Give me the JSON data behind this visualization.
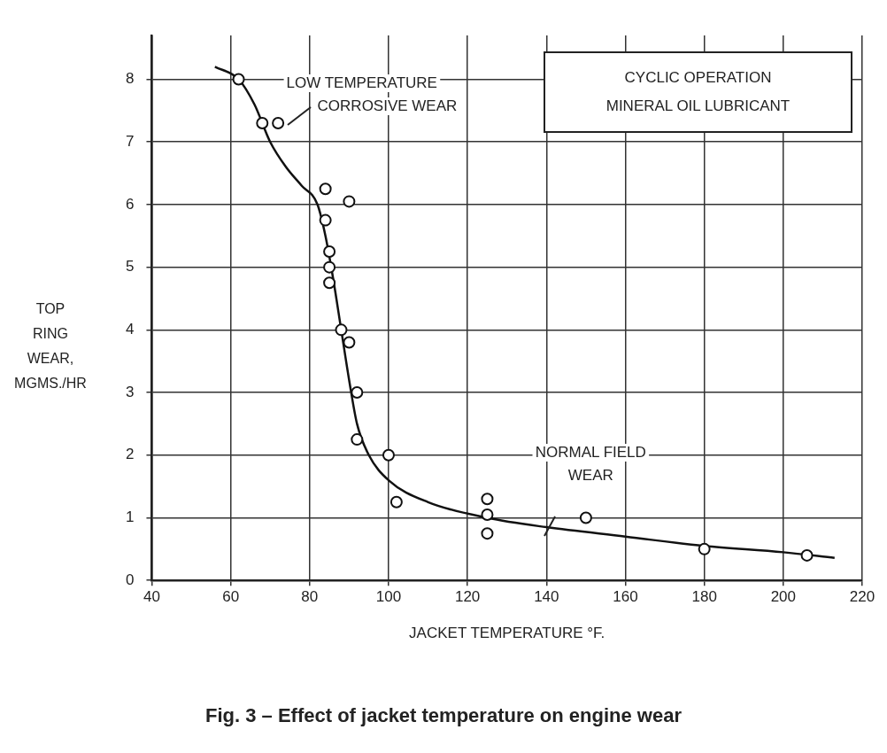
{
  "chart_data": {
    "type": "scatter",
    "title": "Fig. 3 – Effect of jacket temperature on engine wear",
    "xlabel": "JACKET TEMPERATURE °F.",
    "ylabel": "TOP RING WEAR, MGMS./HR",
    "xlim": [
      40,
      220
    ],
    "xticks": [
      40,
      60,
      80,
      100,
      120,
      140,
      160,
      180,
      200,
      220
    ],
    "ylim": [
      0,
      8.7
    ],
    "yticks": [
      0,
      1,
      2,
      3,
      4,
      5,
      6,
      7,
      8
    ],
    "grid": true,
    "legend": false,
    "marker": "circle",
    "annotations": [
      {
        "text": "LOW TEMPERATURE CORROSIVE WEAR",
        "x": 73,
        "y": 7.3
      },
      {
        "text": "NORMAL FIELD WEAR",
        "x": 140,
        "y": 0.85
      },
      "CYCLIC OPERATION MINERAL OIL LUBRICANT"
    ],
    "series": [
      {
        "color": "#111111",
        "x": [
          62,
          68,
          72,
          84,
          90,
          84,
          85,
          85,
          85,
          88,
          90,
          92,
          92,
          100,
          102,
          125,
          125,
          125,
          150,
          180,
          206
        ],
        "values": [
          8.0,
          7.3,
          7.3,
          6.25,
          6.05,
          5.75,
          5.25,
          5.0,
          4.75,
          4.0,
          3.8,
          3.0,
          2.25,
          2.0,
          1.25,
          1.3,
          1.05,
          0.75,
          1.0,
          0.5,
          0.4
        ]
      },
      {
        "type": "line",
        "color": "#111111",
        "marker": "none",
        "x": [
          56,
          62,
          66,
          70,
          74,
          78,
          82,
          84,
          86,
          88,
          90,
          92,
          95,
          100,
          110,
          125,
          140,
          160,
          180,
          200,
          213
        ],
        "values": [
          8.2,
          8.0,
          7.6,
          7.0,
          6.6,
          6.3,
          6.0,
          5.5,
          4.8,
          4.0,
          3.2,
          2.5,
          2.0,
          1.6,
          1.25,
          1.0,
          0.85,
          0.7,
          0.55,
          0.45,
          0.36
        ]
      }
    ]
  }
}
